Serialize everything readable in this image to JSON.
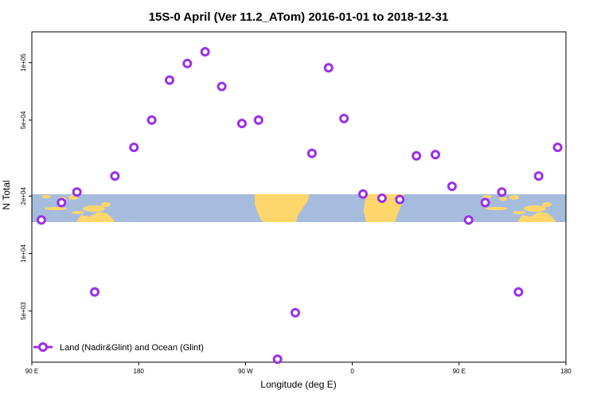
{
  "chart_data": {
    "type": "scatter",
    "title": "15S-0 April (Ver 11.2_ATom)   2016-01-01 to 2018-12-31",
    "xlabel": "Longitude (deg E)",
    "ylabel": "N Total",
    "y_scale": "log",
    "xlim": [
      90,
      540
    ],
    "ylim": [
      2700,
      145000
    ],
    "x_ticks": [
      {
        "value": 90,
        "label": "90 E"
      },
      {
        "value": 180,
        "label": "180"
      },
      {
        "value": 270,
        "label": "90 W"
      },
      {
        "value": 360,
        "label": "0"
      },
      {
        "value": 450,
        "label": "90 E"
      },
      {
        "value": 540,
        "label": "180"
      }
    ],
    "y_ticks": [
      {
        "value": 5000,
        "label": "5e+03"
      },
      {
        "value": 10000,
        "label": "1e+04"
      },
      {
        "value": 20000,
        "label": "2e+04"
      },
      {
        "value": 50000,
        "label": "5e+04"
      },
      {
        "value": 100000,
        "label": "1e+05"
      }
    ],
    "legend_position": "bottom-left",
    "series": [
      {
        "name": "Land (Nadir&Glint) and Ocean (Glint)",
        "color": "#9b30e8",
        "points": [
          {
            "x": 98,
            "y": 15000
          },
          {
            "x": 115,
            "y": 18500
          },
          {
            "x": 128,
            "y": 21000
          },
          {
            "x": 143,
            "y": 6300
          },
          {
            "x": 160,
            "y": 25500
          },
          {
            "x": 176,
            "y": 36000
          },
          {
            "x": 191,
            "y": 50000
          },
          {
            "x": 206,
            "y": 81000
          },
          {
            "x": 221,
            "y": 99000
          },
          {
            "x": 236,
            "y": 114000
          },
          {
            "x": 250,
            "y": 75000
          },
          {
            "x": 267,
            "y": 48000
          },
          {
            "x": 281,
            "y": 50000
          },
          {
            "x": 297,
            "y": 2800
          },
          {
            "x": 312,
            "y": 4900
          },
          {
            "x": 326,
            "y": 33500
          },
          {
            "x": 340,
            "y": 94000
          },
          {
            "x": 353,
            "y": 51000
          },
          {
            "x": 369,
            "y": 20500
          },
          {
            "x": 385,
            "y": 19500
          },
          {
            "x": 400,
            "y": 19200
          },
          {
            "x": 414,
            "y": 32500
          },
          {
            "x": 430,
            "y": 33000
          },
          {
            "x": 444,
            "y": 22500
          },
          {
            "x": 458,
            "y": 15000
          },
          {
            "x": 472,
            "y": 18500
          },
          {
            "x": 486,
            "y": 21000
          },
          {
            "x": 500,
            "y": 6300
          },
          {
            "x": 517,
            "y": 25500
          },
          {
            "x": 533,
            "y": 36000
          }
        ]
      }
    ]
  }
}
